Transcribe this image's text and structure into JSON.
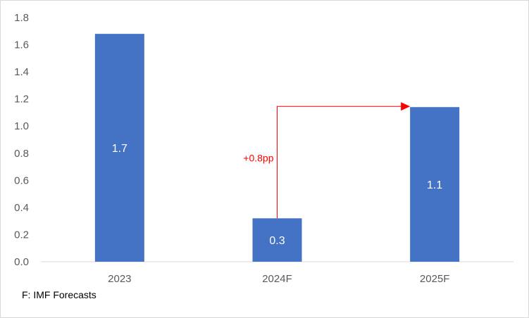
{
  "chart_data": {
    "type": "bar",
    "categories": [
      "2023",
      "2024F",
      "2025F"
    ],
    "values": [
      1.68,
      0.32,
      1.14
    ],
    "data_labels": [
      "1.7",
      "0.3",
      "1.1"
    ],
    "y_ticks": [
      "0.0",
      "0.2",
      "0.4",
      "0.6",
      "0.8",
      "1.0",
      "1.2",
      "1.4",
      "1.6",
      "1.8"
    ],
    "ylim": [
      0,
      1.8
    ],
    "grid": false,
    "bar_color": "#4472c4",
    "annotation": {
      "text": "+0.8pp",
      "color": "#ff0000",
      "from_category": "2024F",
      "to_category": "2025F"
    }
  },
  "footnote": "F: IMF Forecasts"
}
